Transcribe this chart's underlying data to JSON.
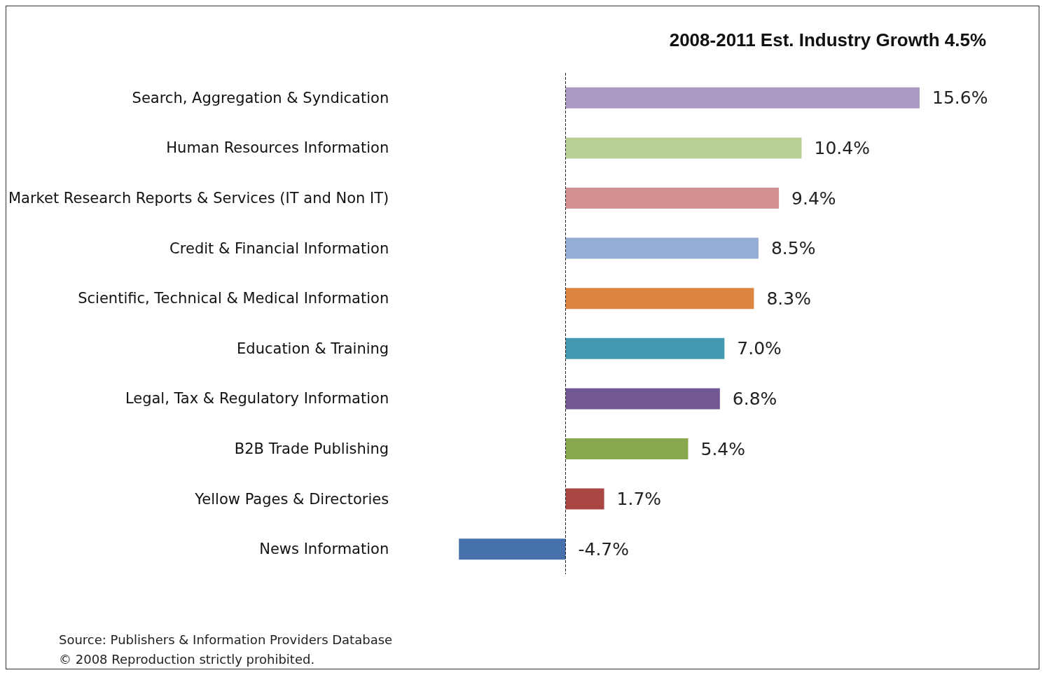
{
  "chart_data": {
    "type": "bar",
    "orientation": "horizontal",
    "title": "2008-2011 Est. Industry Growth 4.5%",
    "categories": [
      "Search, Aggregation & Syndication",
      "Human Resources Information",
      "Market Research Reports & Services (IT and Non IT)",
      "Credit & Financial Information",
      "Scientific, Technical & Medical Information",
      "Education & Training",
      "Legal, Tax & Regulatory Information",
      "B2B Trade Publishing",
      "Yellow Pages & Directories",
      "News Information"
    ],
    "values": [
      15.6,
      10.4,
      9.4,
      8.5,
      8.3,
      7.0,
      6.8,
      5.4,
      1.7,
      -4.7
    ],
    "colors": [
      "#a99bc1",
      "#b8cf96",
      "#d29190",
      "#95acd4",
      "#dd8440",
      "#4399b0",
      "#715892",
      "#8aa94f",
      "#aa4745",
      "#4771ad"
    ],
    "value_labels": [
      "15.6%",
      "10.4%",
      "9.4%",
      "8.5%",
      "8.3%",
      "7.0%",
      "6.8%",
      "5.4%",
      "1.7%",
      "-4.7%"
    ],
    "ref_lines": [
      {
        "axis": "x",
        "value": 0,
        "line_style": "dashed",
        "color": "#222222"
      }
    ],
    "annotations": [
      "Source: Publishers & Information Providers Database",
      "© 2008 Reproduction strictly prohibited."
    ]
  }
}
